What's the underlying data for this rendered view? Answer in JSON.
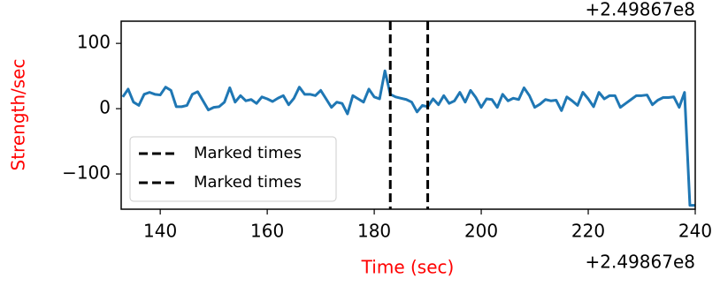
{
  "chart_data": {
    "type": "line",
    "xlabel": "Time (sec)",
    "ylabel": "Strength/sec",
    "x_offset_text": "+2.49867e8",
    "xlim": [
      132.7,
      240
    ],
    "ylim": [
      -154,
      134
    ],
    "xticks": [
      140,
      160,
      180,
      200,
      220,
      240
    ],
    "yticks": [
      100,
      0,
      {
        "value": -100,
        "label": "−100"
      }
    ],
    "label_color": "#ff0000",
    "legend": "lower left",
    "series": [
      {
        "color": "#1f77b4",
        "x": [
          133,
          134,
          135,
          136,
          137,
          138,
          139,
          140,
          141,
          142,
          143,
          144,
          145,
          146,
          147,
          148,
          149,
          150,
          151,
          152,
          153,
          154,
          155,
          156,
          157,
          158,
          159,
          160,
          161,
          162,
          163,
          164,
          165,
          166,
          167,
          168,
          169,
          170,
          171,
          172,
          173,
          174,
          175,
          176,
          177,
          178,
          179,
          180,
          181,
          182,
          183,
          184,
          185,
          186,
          187,
          188,
          189,
          190,
          191,
          192,
          193,
          194,
          195,
          196,
          197,
          198,
          199,
          200,
          201,
          202,
          203,
          204,
          205,
          206,
          207,
          208,
          209,
          210,
          211,
          212,
          213,
          214,
          215,
          216,
          217,
          218,
          219,
          220,
          221,
          222,
          223,
          224,
          225,
          226,
          227,
          228,
          229,
          230,
          231,
          232,
          233,
          234,
          235,
          236,
          237,
          238,
          239,
          240
        ],
        "values": [
          18,
          30,
          10,
          5,
          22,
          25,
          22,
          21,
          33,
          28,
          3,
          3,
          5,
          22,
          26,
          12,
          -2,
          2,
          3,
          10,
          32,
          10,
          20,
          12,
          14,
          8,
          18,
          15,
          11,
          16,
          20,
          6,
          16,
          33,
          22,
          22,
          20,
          28,
          15,
          2,
          10,
          8,
          -8,
          20,
          15,
          10,
          30,
          18,
          15,
          58,
          22,
          18,
          16,
          14,
          10,
          -5,
          5,
          3,
          15,
          6,
          20,
          8,
          12,
          25,
          10,
          28,
          17,
          2,
          15,
          14,
          2,
          22,
          12,
          16,
          14,
          32,
          20,
          2,
          7,
          14,
          12,
          13,
          -3,
          18,
          12,
          5,
          25,
          15,
          3,
          25,
          15,
          20,
          20,
          2,
          8,
          14,
          20,
          20,
          21,
          6,
          13,
          17,
          17,
          18,
          2,
          25,
          -148,
          -148
        ]
      }
    ],
    "vlines": [
      {
        "name": "Marked times",
        "x": 183,
        "color": "#000000"
      },
      {
        "name": "Marked times",
        "x": 190,
        "color": "#000000"
      }
    ]
  }
}
